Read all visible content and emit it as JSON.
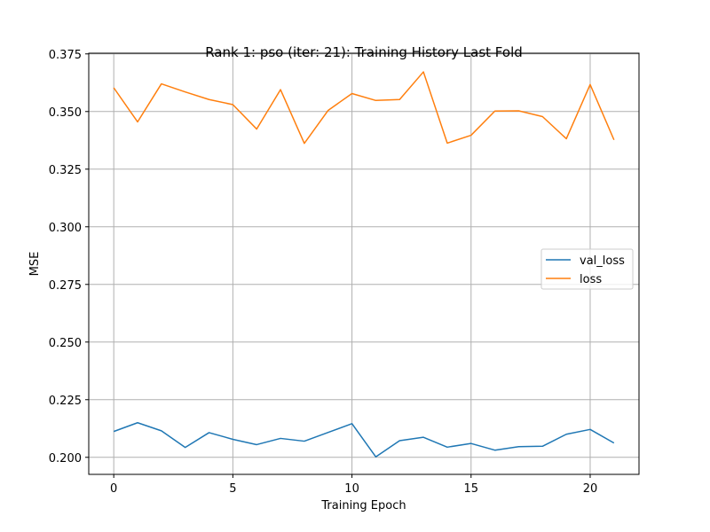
{
  "chart_data": {
    "type": "line",
    "title": "Rank 1: pso (iter: 21): Training History Last Fold",
    "xlabel": "Training Epoch",
    "ylabel": "MSE",
    "xlim": [
      -1.05,
      22.05
    ],
    "ylim": [
      0.1926,
      0.3753
    ],
    "x_ticks": [
      0,
      5,
      10,
      15,
      20
    ],
    "y_ticks": [
      0.2,
      0.225,
      0.25,
      0.275,
      0.3,
      0.325,
      0.35,
      0.375
    ],
    "grid": true,
    "legend_position": "center-right",
    "x": [
      0,
      1,
      2,
      3,
      4,
      5,
      6,
      7,
      8,
      9,
      10,
      11,
      12,
      13,
      14,
      15,
      16,
      17,
      18,
      19,
      20,
      21
    ],
    "series": [
      {
        "name": "val_loss",
        "color": "#1f77b4",
        "values": [
          0.2112,
          0.215,
          0.2115,
          0.2043,
          0.2107,
          0.2078,
          0.2055,
          0.2082,
          0.207,
          0.2108,
          0.2146,
          0.2002,
          0.2072,
          0.2087,
          0.2044,
          0.206,
          0.2031,
          0.2046,
          0.2048,
          0.21,
          0.2121,
          0.2062
        ]
      },
      {
        "name": "loss",
        "color": "#ff7f0e",
        "values": [
          0.3603,
          0.3455,
          0.362,
          0.3585,
          0.3552,
          0.353,
          0.3424,
          0.3595,
          0.3362,
          0.3505,
          0.3578,
          0.3548,
          0.3552,
          0.3672,
          0.3363,
          0.3397,
          0.3502,
          0.3503,
          0.3478,
          0.3382,
          0.3617,
          0.3377
        ]
      }
    ]
  }
}
